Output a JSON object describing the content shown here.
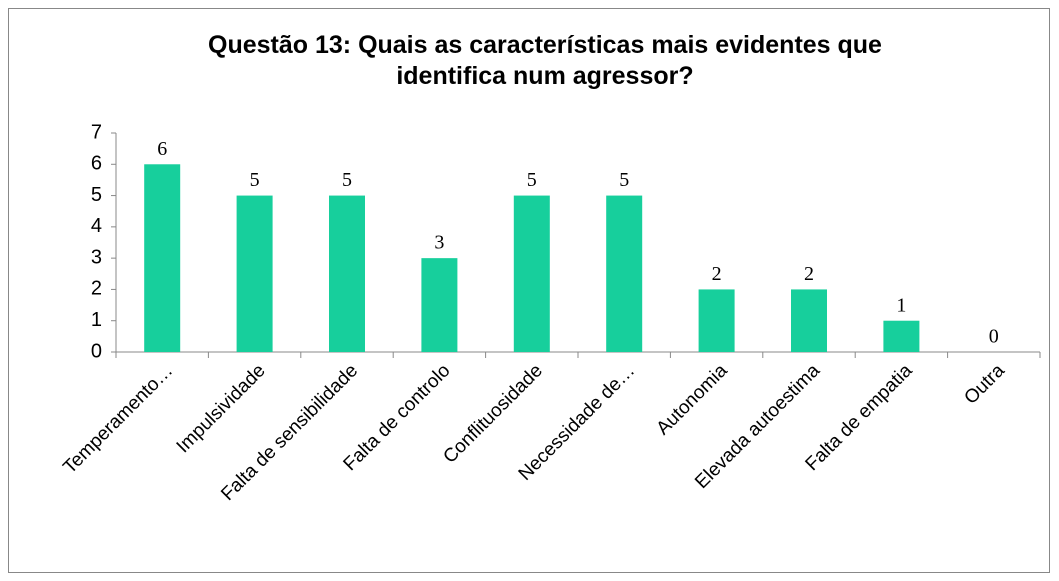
{
  "chart_data": {
    "type": "bar",
    "title": "Questão 13: Quais as características mais evidentes que identifica num agressor?",
    "categories": [
      "Temperamento…",
      "Impulsividade",
      "Falta de sensibilidade",
      "Falta de controlo",
      "Conflituosidade",
      "Necessidade de…",
      "Autonomia",
      "Elevada autoestima",
      "Falta de empatia",
      "Outra"
    ],
    "values": [
      6,
      5,
      5,
      3,
      5,
      5,
      2,
      2,
      1,
      0
    ],
    "color": "#17cf9c",
    "ylim": [
      0,
      7
    ],
    "yticks": [
      0,
      1,
      2,
      3,
      4,
      5,
      6,
      7
    ],
    "grid": false
  }
}
